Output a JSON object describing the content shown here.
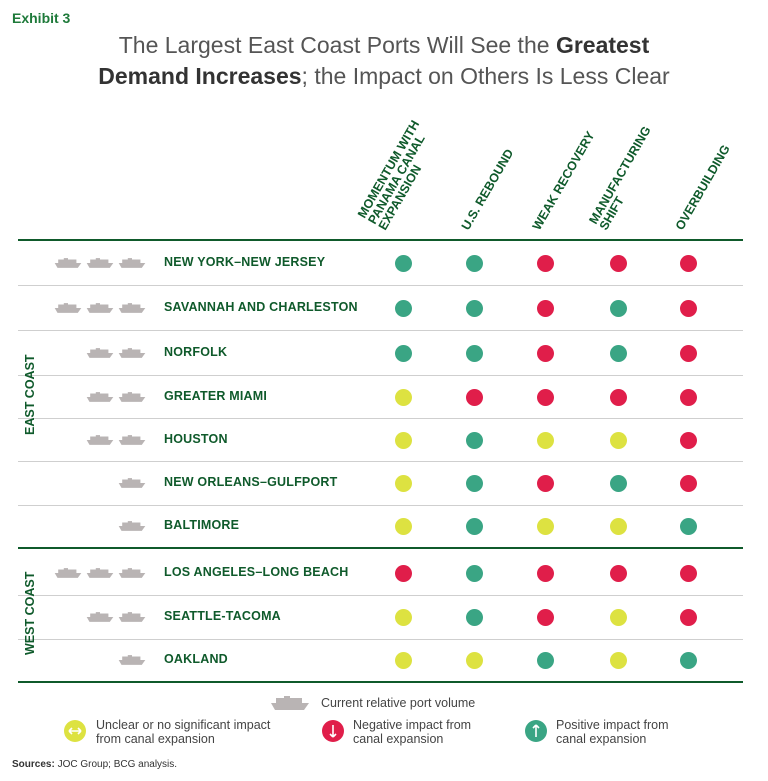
{
  "exhibit_label": "Exhibit 3",
  "title": {
    "part1": "The Largest East Coast Ports Will See the ",
    "bold1": "Greatest",
    "bold2": "Demand Increases",
    "part2": "; the Impact on Others Is Less Clear"
  },
  "colors": {
    "negative": "#e01e4a",
    "positive": "#3aa584",
    "unclear": "#dde241",
    "header_green": "#0f5a2b"
  },
  "chart_data": {
    "type": "table",
    "columns": [
      {
        "line1": "MOMENTUM WITH",
        "line2": "PANAMA CANAL",
        "line3": "EXPANSION"
      },
      {
        "line1": "U.S. REBOUND",
        "line2": "",
        "line3": ""
      },
      {
        "line1": "WEAK RECOVERY",
        "line2": "",
        "line3": ""
      },
      {
        "line1": "MANUFACTURING",
        "line2": "SHIFT",
        "line3": ""
      },
      {
        "line1": "OVERBUILDING",
        "line2": "",
        "line3": ""
      }
    ],
    "regions": [
      "EAST COAST",
      "WEST COAST"
    ],
    "rows": [
      {
        "port": "NEW YORK–NEW JERSEY",
        "region": "EAST COAST",
        "volume": 3,
        "impacts": [
          "positive",
          "positive",
          "negative",
          "negative",
          "negative"
        ]
      },
      {
        "port": "SAVANNAH AND CHARLESTON",
        "region": "EAST COAST",
        "volume": 3,
        "impacts": [
          "positive",
          "positive",
          "negative",
          "positive",
          "negative"
        ]
      },
      {
        "port": "NORFOLK",
        "region": "EAST COAST",
        "volume": 2,
        "impacts": [
          "positive",
          "positive",
          "negative",
          "positive",
          "negative"
        ]
      },
      {
        "port": "GREATER MIAMI",
        "region": "EAST COAST",
        "volume": 2,
        "impacts": [
          "unclear",
          "negative",
          "negative",
          "negative",
          "negative"
        ]
      },
      {
        "port": "HOUSTON",
        "region": "EAST COAST",
        "volume": 2,
        "impacts": [
          "unclear",
          "positive",
          "unclear",
          "unclear",
          "negative"
        ]
      },
      {
        "port": "NEW ORLEANS–GULFPORT",
        "region": "EAST COAST",
        "volume": 1,
        "impacts": [
          "unclear",
          "positive",
          "negative",
          "positive",
          "negative"
        ]
      },
      {
        "port": "BALTIMORE",
        "region": "EAST COAST",
        "volume": 1,
        "impacts": [
          "unclear",
          "positive",
          "unclear",
          "unclear",
          "positive"
        ]
      },
      {
        "port": "LOS ANGELES–LONG BEACH",
        "region": "WEST COAST",
        "volume": 3,
        "impacts": [
          "negative",
          "positive",
          "negative",
          "negative",
          "negative"
        ]
      },
      {
        "port": "SEATTLE-TACOMA",
        "region": "WEST COAST",
        "volume": 2,
        "impacts": [
          "unclear",
          "positive",
          "negative",
          "unclear",
          "negative"
        ]
      },
      {
        "port": "OAKLAND",
        "region": "WEST COAST",
        "volume": 1,
        "impacts": [
          "unclear",
          "unclear",
          "positive",
          "unclear",
          "positive"
        ]
      }
    ]
  },
  "legend": {
    "ship_label": "Current relative port volume",
    "unclear": {
      "line1": "Unclear or no significant impact",
      "line2": "from canal expansion",
      "icon": "left-right-arrow-icon"
    },
    "negative": {
      "line1": "Negative impact from",
      "line2": "canal expansion",
      "icon": "down-arrow-icon"
    },
    "positive": {
      "line1": "Positive impact from",
      "line2": "canal expansion",
      "icon": "up-arrow-icon"
    }
  },
  "sources": {
    "label": "Sources:",
    "text": " JOC Group; BCG analysis."
  }
}
